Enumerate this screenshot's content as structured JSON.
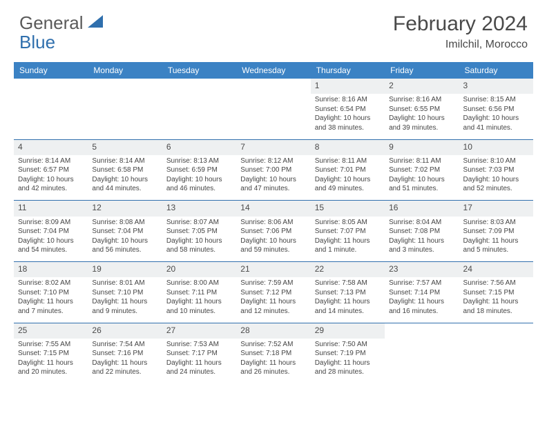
{
  "brand": {
    "part1": "General",
    "part2": "Blue"
  },
  "title": "February 2024",
  "location": "Imilchil, Morocco",
  "colors": {
    "header_bg": "#3b82c4",
    "header_text": "#ffffff",
    "daynum_bg": "#eef0f1",
    "divider": "#2f6fad",
    "body_text": "#444444",
    "title_text": "#494949"
  },
  "daysOfWeek": [
    "Sunday",
    "Monday",
    "Tuesday",
    "Wednesday",
    "Thursday",
    "Friday",
    "Saturday"
  ],
  "weeks": [
    [
      null,
      null,
      null,
      null,
      {
        "n": "1",
        "sr": "Sunrise: 8:16 AM",
        "ss": "Sunset: 6:54 PM",
        "dl1": "Daylight: 10 hours",
        "dl2": "and 38 minutes."
      },
      {
        "n": "2",
        "sr": "Sunrise: 8:16 AM",
        "ss": "Sunset: 6:55 PM",
        "dl1": "Daylight: 10 hours",
        "dl2": "and 39 minutes."
      },
      {
        "n": "3",
        "sr": "Sunrise: 8:15 AM",
        "ss": "Sunset: 6:56 PM",
        "dl1": "Daylight: 10 hours",
        "dl2": "and 41 minutes."
      }
    ],
    [
      {
        "n": "4",
        "sr": "Sunrise: 8:14 AM",
        "ss": "Sunset: 6:57 PM",
        "dl1": "Daylight: 10 hours",
        "dl2": "and 42 minutes."
      },
      {
        "n": "5",
        "sr": "Sunrise: 8:14 AM",
        "ss": "Sunset: 6:58 PM",
        "dl1": "Daylight: 10 hours",
        "dl2": "and 44 minutes."
      },
      {
        "n": "6",
        "sr": "Sunrise: 8:13 AM",
        "ss": "Sunset: 6:59 PM",
        "dl1": "Daylight: 10 hours",
        "dl2": "and 46 minutes."
      },
      {
        "n": "7",
        "sr": "Sunrise: 8:12 AM",
        "ss": "Sunset: 7:00 PM",
        "dl1": "Daylight: 10 hours",
        "dl2": "and 47 minutes."
      },
      {
        "n": "8",
        "sr": "Sunrise: 8:11 AM",
        "ss": "Sunset: 7:01 PM",
        "dl1": "Daylight: 10 hours",
        "dl2": "and 49 minutes."
      },
      {
        "n": "9",
        "sr": "Sunrise: 8:11 AM",
        "ss": "Sunset: 7:02 PM",
        "dl1": "Daylight: 10 hours",
        "dl2": "and 51 minutes."
      },
      {
        "n": "10",
        "sr": "Sunrise: 8:10 AM",
        "ss": "Sunset: 7:03 PM",
        "dl1": "Daylight: 10 hours",
        "dl2": "and 52 minutes."
      }
    ],
    [
      {
        "n": "11",
        "sr": "Sunrise: 8:09 AM",
        "ss": "Sunset: 7:04 PM",
        "dl1": "Daylight: 10 hours",
        "dl2": "and 54 minutes."
      },
      {
        "n": "12",
        "sr": "Sunrise: 8:08 AM",
        "ss": "Sunset: 7:04 PM",
        "dl1": "Daylight: 10 hours",
        "dl2": "and 56 minutes."
      },
      {
        "n": "13",
        "sr": "Sunrise: 8:07 AM",
        "ss": "Sunset: 7:05 PM",
        "dl1": "Daylight: 10 hours",
        "dl2": "and 58 minutes."
      },
      {
        "n": "14",
        "sr": "Sunrise: 8:06 AM",
        "ss": "Sunset: 7:06 PM",
        "dl1": "Daylight: 10 hours",
        "dl2": "and 59 minutes."
      },
      {
        "n": "15",
        "sr": "Sunrise: 8:05 AM",
        "ss": "Sunset: 7:07 PM",
        "dl1": "Daylight: 11 hours",
        "dl2": "and 1 minute."
      },
      {
        "n": "16",
        "sr": "Sunrise: 8:04 AM",
        "ss": "Sunset: 7:08 PM",
        "dl1": "Daylight: 11 hours",
        "dl2": "and 3 minutes."
      },
      {
        "n": "17",
        "sr": "Sunrise: 8:03 AM",
        "ss": "Sunset: 7:09 PM",
        "dl1": "Daylight: 11 hours",
        "dl2": "and 5 minutes."
      }
    ],
    [
      {
        "n": "18",
        "sr": "Sunrise: 8:02 AM",
        "ss": "Sunset: 7:10 PM",
        "dl1": "Daylight: 11 hours",
        "dl2": "and 7 minutes."
      },
      {
        "n": "19",
        "sr": "Sunrise: 8:01 AM",
        "ss": "Sunset: 7:10 PM",
        "dl1": "Daylight: 11 hours",
        "dl2": "and 9 minutes."
      },
      {
        "n": "20",
        "sr": "Sunrise: 8:00 AM",
        "ss": "Sunset: 7:11 PM",
        "dl1": "Daylight: 11 hours",
        "dl2": "and 10 minutes."
      },
      {
        "n": "21",
        "sr": "Sunrise: 7:59 AM",
        "ss": "Sunset: 7:12 PM",
        "dl1": "Daylight: 11 hours",
        "dl2": "and 12 minutes."
      },
      {
        "n": "22",
        "sr": "Sunrise: 7:58 AM",
        "ss": "Sunset: 7:13 PM",
        "dl1": "Daylight: 11 hours",
        "dl2": "and 14 minutes."
      },
      {
        "n": "23",
        "sr": "Sunrise: 7:57 AM",
        "ss": "Sunset: 7:14 PM",
        "dl1": "Daylight: 11 hours",
        "dl2": "and 16 minutes."
      },
      {
        "n": "24",
        "sr": "Sunrise: 7:56 AM",
        "ss": "Sunset: 7:15 PM",
        "dl1": "Daylight: 11 hours",
        "dl2": "and 18 minutes."
      }
    ],
    [
      {
        "n": "25",
        "sr": "Sunrise: 7:55 AM",
        "ss": "Sunset: 7:15 PM",
        "dl1": "Daylight: 11 hours",
        "dl2": "and 20 minutes."
      },
      {
        "n": "26",
        "sr": "Sunrise: 7:54 AM",
        "ss": "Sunset: 7:16 PM",
        "dl1": "Daylight: 11 hours",
        "dl2": "and 22 minutes."
      },
      {
        "n": "27",
        "sr": "Sunrise: 7:53 AM",
        "ss": "Sunset: 7:17 PM",
        "dl1": "Daylight: 11 hours",
        "dl2": "and 24 minutes."
      },
      {
        "n": "28",
        "sr": "Sunrise: 7:52 AM",
        "ss": "Sunset: 7:18 PM",
        "dl1": "Daylight: 11 hours",
        "dl2": "and 26 minutes."
      },
      {
        "n": "29",
        "sr": "Sunrise: 7:50 AM",
        "ss": "Sunset: 7:19 PM",
        "dl1": "Daylight: 11 hours",
        "dl2": "and 28 minutes."
      },
      null,
      null
    ]
  ]
}
